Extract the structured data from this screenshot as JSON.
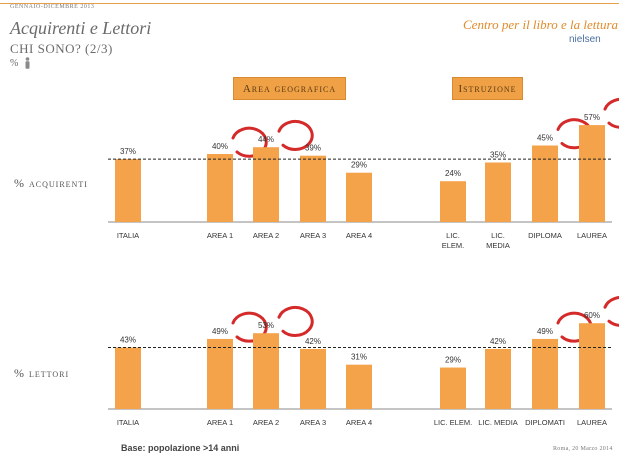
{
  "header": {
    "period": "GENNAIO-DICEMBRE 2013",
    "title": "Acquirenti e Lettori",
    "subtitle": "CHI SONO? (2/3)",
    "pct_symbol": "%",
    "brand": "Centro per il libro e la lettura",
    "brand2": "nielsen"
  },
  "groups": {
    "area": "Area geografica",
    "istruzione": "Istruzione"
  },
  "chart_data": [
    {
      "type": "bar",
      "ylabel": "% acquirenti",
      "categories": [
        "ITALIA",
        "AREA 1",
        "AREA 2",
        "AREA 3",
        "AREA 4",
        "LIC. ELEM.",
        "LIC. MEDIA",
        "DIPLOMA",
        "LAUREA"
      ],
      "values": [
        37,
        40,
        44,
        39,
        29,
        24,
        35,
        45,
        57
      ],
      "value_labels": [
        "37%",
        "40%",
        "44%",
        "39%",
        "29%",
        "24%",
        "35%",
        "45%",
        "57%"
      ],
      "reference_line": 37,
      "highlighted": [
        "AREA 1",
        "AREA 2",
        "DIPLOMA",
        "LAUREA"
      ],
      "bar_color": "#f5a34a"
    },
    {
      "type": "bar",
      "ylabel": "% lettori",
      "categories": [
        "ITALIA",
        "AREA 1",
        "AREA 2",
        "AREA 3",
        "AREA 4",
        "LIC. ELEM.",
        "LIC. MEDIA",
        "DIPLOMATI",
        "LAUREA"
      ],
      "values": [
        43,
        49,
        53,
        42,
        31,
        29,
        42,
        49,
        60
      ],
      "value_labels": [
        "43%",
        "49%",
        "53%",
        "42%",
        "31%",
        "29%",
        "42%",
        "49%",
        "60%"
      ],
      "reference_line": 43,
      "highlighted": [
        "AREA 1",
        "AREA 2",
        "DIPLOMATI",
        "LAUREA"
      ],
      "bar_color": "#f5a34a"
    }
  ],
  "footer": {
    "base": "Base: popolazione >14 anni",
    "place": "Roma, 20 Marzo 2014"
  }
}
